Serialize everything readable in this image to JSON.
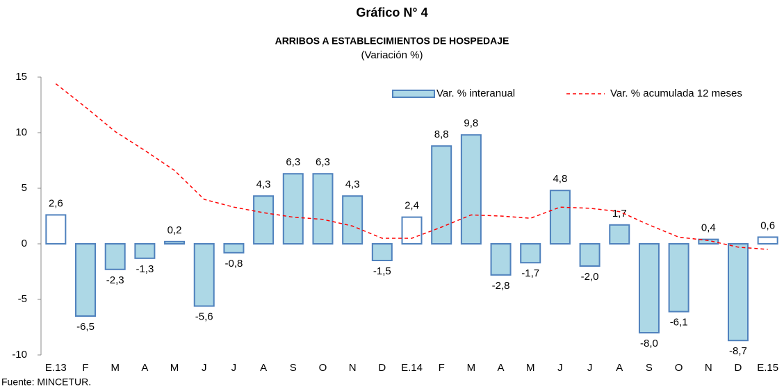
{
  "chart_data": {
    "type": "bar-line",
    "title": "Gráfico N° 4",
    "subtitle": "ARRIBOS A ESTABLECIMIENTOS DE HOSPEDAJE",
    "unit_label": "(Variación %)",
    "source": "Fuente: MINCETUR.",
    "categories": [
      "E.13",
      "F",
      "M",
      "A",
      "M",
      "J",
      "J",
      "A",
      "S",
      "O",
      "N",
      "D",
      "E.14",
      "F",
      "M",
      "A",
      "M",
      "J",
      "J",
      "A",
      "S",
      "O",
      "N",
      "D",
      "E.15"
    ],
    "ylim": [
      -10,
      15
    ],
    "yticks": [
      -10,
      -5,
      0,
      5,
      10,
      15
    ],
    "grid": false,
    "legend": "top-right",
    "series": [
      {
        "name": "Var. % interanual",
        "kind": "bar",
        "color": "#add8e6",
        "edge_color": "#4f81bd",
        "bar_colors": [
          "#ffffff",
          "#add8e6",
          "#add8e6",
          "#add8e6",
          "#add8e6",
          "#add8e6",
          "#add8e6",
          "#add8e6",
          "#add8e6",
          "#add8e6",
          "#add8e6",
          "#add8e6",
          "#ffffff",
          "#add8e6",
          "#add8e6",
          "#add8e6",
          "#add8e6",
          "#add8e6",
          "#add8e6",
          "#add8e6",
          "#add8e6",
          "#add8e6",
          "#add8e6",
          "#add8e6",
          "#ffffff"
        ],
        "values": [
          2.6,
          -6.5,
          -2.3,
          -1.3,
          0.2,
          -5.6,
          -0.8,
          4.3,
          6.3,
          6.3,
          4.3,
          -1.5,
          2.4,
          8.8,
          9.8,
          -2.8,
          -1.7,
          4.8,
          -2.0,
          1.7,
          -8.0,
          -6.1,
          0.4,
          -8.7,
          0.6
        ],
        "value_labels": [
          "2,6",
          "-6,5",
          "-2,3",
          "-1,3",
          "0,2",
          "-5,6",
          "-0,8",
          "4,3",
          "6,3",
          "6,3",
          "4,3",
          "-1,5",
          "2,4",
          "8,8",
          "9,8",
          "-2,8",
          "-1,7",
          "4,8",
          "-2,0",
          "1,7",
          "-8,0",
          "-6,1",
          "0,4",
          "-8,7",
          "0,6"
        ]
      },
      {
        "name": "Var. % acumulada 12 meses",
        "kind": "line",
        "color": "#ff0000",
        "dashed": true,
        "values": [
          14.4,
          12.3,
          10.1,
          8.4,
          6.6,
          4.0,
          3.3,
          2.8,
          2.4,
          2.2,
          1.6,
          0.5,
          0.5,
          1.5,
          2.6,
          2.5,
          2.3,
          3.3,
          3.2,
          2.9,
          1.7,
          0.6,
          0.3,
          -0.3,
          -0.5
        ]
      }
    ]
  }
}
